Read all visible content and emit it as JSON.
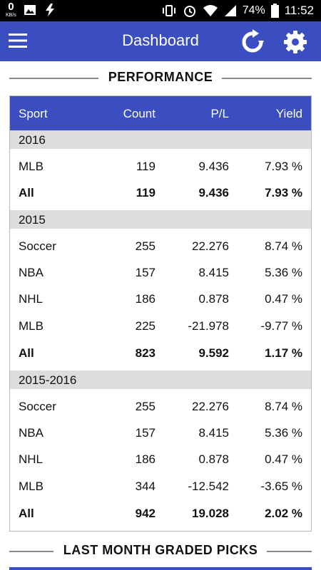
{
  "status": {
    "kbs_value": "0",
    "kbs_unit": "KB/s",
    "battery": "74%",
    "time": "11:52"
  },
  "appbar": {
    "title": "Dashboard"
  },
  "sections": {
    "performance": "PERFORMANCE",
    "last_month": "LAST MONTH GRADED PICKS"
  },
  "table": {
    "columns": [
      "Sport",
      "Count",
      "P/L",
      "Yield"
    ],
    "groups": [
      {
        "label": "2016",
        "rows": [
          [
            "MLB",
            "119",
            "9.436",
            "7.93 %"
          ],
          [
            "All",
            "119",
            "9.436",
            "7.93 %"
          ]
        ]
      },
      {
        "label": "2015",
        "rows": [
          [
            "Soccer",
            "255",
            "22.276",
            "8.74 %"
          ],
          [
            "NBA",
            "157",
            "8.415",
            "5.36 %"
          ],
          [
            "NHL",
            "186",
            "0.878",
            "0.47 %"
          ],
          [
            "MLB",
            "225",
            "-21.978",
            "-9.77 %"
          ],
          [
            "All",
            "823",
            "9.592",
            "1.17 %"
          ]
        ]
      },
      {
        "label": "2015-2016",
        "rows": [
          [
            "Soccer",
            "255",
            "22.276",
            "8.74 %"
          ],
          [
            "NBA",
            "157",
            "8.415",
            "5.36 %"
          ],
          [
            "NHL",
            "186",
            "0.878",
            "0.47 %"
          ],
          [
            "MLB",
            "344",
            "-12.542",
            "-3.65 %"
          ],
          [
            "All",
            "942",
            "19.028",
            "2.02 %"
          ]
        ]
      }
    ]
  },
  "colors": {
    "primary": "#3a4ec1",
    "group_bg": "#dddddd"
  }
}
